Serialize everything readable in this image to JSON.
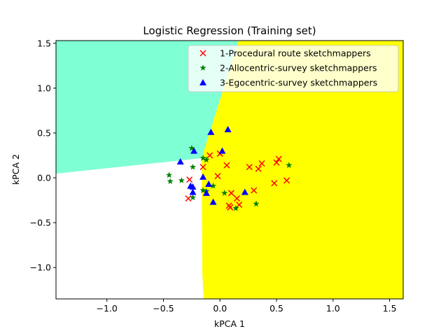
{
  "chart_data": {
    "type": "scatter",
    "title": "Logistic Regression (Training set)",
    "xlabel": "kPCA 1",
    "ylabel": "kPCA 2",
    "xlim": [
      -1.45,
      1.62
    ],
    "ylim": [
      -1.35,
      1.53
    ],
    "xticks": [
      -1.0,
      -0.5,
      0.0,
      0.5,
      1.0,
      1.5
    ],
    "xtick_labels": [
      "−1.0",
      "−0.5",
      "0.0",
      "0.5",
      "1.0",
      "1.5"
    ],
    "yticks": [
      -1.0,
      -0.5,
      0.0,
      0.5,
      1.0,
      1.5
    ],
    "ytick_labels": [
      "−1.0",
      "−0.5",
      "0.0",
      "0.5",
      "1.0",
      "1.5"
    ],
    "grid": false,
    "legend_position": "top-right",
    "decision_regions": [
      {
        "class": "1-Procedural route sketchmappers",
        "color": "#ffff00"
      },
      {
        "class": "2-Allocentric-survey sketchmappers",
        "color": "#7fffd4"
      },
      {
        "class": "3-Egocentric-survey sketchmappers",
        "color": "#ffffff"
      }
    ],
    "series": [
      {
        "name": "1-Procedural route sketchmappers",
        "marker": "x",
        "color": "#ff0000",
        "points": [
          [
            -0.28,
            -0.23
          ],
          [
            -0.27,
            -0.02
          ],
          [
            -0.15,
            0.12
          ],
          [
            -0.09,
            0.25
          ],
          [
            0.0,
            0.27
          ],
          [
            -0.02,
            0.02
          ],
          [
            0.06,
            0.14
          ],
          [
            0.26,
            0.12
          ],
          [
            0.34,
            0.1
          ],
          [
            0.37,
            0.16
          ],
          [
            0.5,
            0.17
          ],
          [
            0.52,
            0.21
          ],
          [
            0.48,
            -0.06
          ],
          [
            0.59,
            -0.03
          ],
          [
            0.3,
            -0.14
          ],
          [
            0.1,
            -0.17
          ],
          [
            0.15,
            -0.23
          ],
          [
            0.17,
            -0.3
          ],
          [
            0.08,
            -0.31
          ],
          [
            0.09,
            -0.33
          ]
        ]
      },
      {
        "name": "2-Allocentric-survey sketchmappers",
        "marker": "star",
        "color": "#008000",
        "points": [
          [
            -0.45,
            0.03
          ],
          [
            -0.44,
            -0.04
          ],
          [
            -0.34,
            -0.03
          ],
          [
            -0.25,
            0.33
          ],
          [
            -0.24,
            0.12
          ],
          [
            -0.15,
            0.22
          ],
          [
            -0.12,
            0.2
          ],
          [
            -0.15,
            -0.14
          ],
          [
            -0.12,
            -0.15
          ],
          [
            -0.06,
            -0.09
          ],
          [
            0.04,
            -0.17
          ],
          [
            0.14,
            -0.34
          ],
          [
            0.32,
            -0.29
          ],
          [
            0.61,
            0.14
          ],
          [
            -0.24,
            -0.22
          ]
        ]
      },
      {
        "name": "3-Egocentric-survey sketchmappers",
        "marker": "triangle",
        "color": "#0000ff",
        "points": [
          [
            -0.35,
            0.18
          ],
          [
            -0.23,
            0.3
          ],
          [
            -0.26,
            -0.09
          ],
          [
            -0.24,
            -0.1
          ],
          [
            -0.24,
            -0.16
          ],
          [
            -0.15,
            0.01
          ],
          [
            -0.12,
            -0.17
          ],
          [
            -0.1,
            -0.07
          ],
          [
            -0.08,
            0.51
          ],
          [
            -0.06,
            -0.27
          ],
          [
            0.02,
            0.3
          ],
          [
            0.07,
            0.54
          ],
          [
            0.22,
            -0.16
          ]
        ]
      }
    ]
  }
}
